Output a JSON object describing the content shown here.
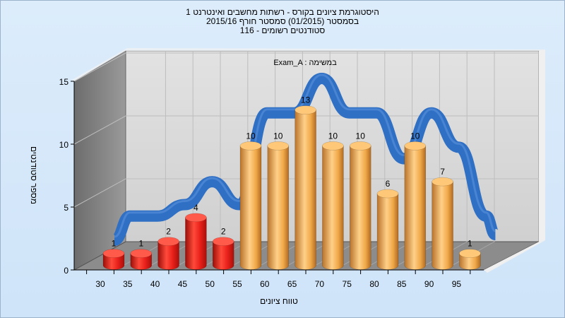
{
  "chart_data": {
    "type": "bar",
    "title_lines": [
      "היסטוגרמת ציונים בקורס - רשתות מחשבים ואינטרנט 1",
      "בסמסטר  (01/2015)  סמסטר חורף 2015/16",
      "סטודנטים רשומים - 116"
    ],
    "annotation": "Exam_A : במשימה",
    "xlabel": "טווח ציונים",
    "ylabel": "מספר סטודנטים",
    "categories": [
      "30",
      "35",
      "40",
      "45",
      "50",
      "55",
      "60",
      "65",
      "70",
      "75",
      "80",
      "85",
      "90",
      "95"
    ],
    "values": [
      1,
      1,
      2,
      4,
      2,
      10,
      10,
      13,
      10,
      10,
      6,
      10,
      7,
      1
    ],
    "data_labels": [
      "1",
      "1",
      "2",
      "4",
      "2",
      "10",
      "10",
      "13",
      "10",
      "10",
      "6",
      "10",
      "7",
      "1"
    ],
    "bar_colors": [
      "#e8201a",
      "#e8201a",
      "#e8201a",
      "#e8201a",
      "#e8201a",
      "#f0a848",
      "#f0a848",
      "#f0a848",
      "#f0a848",
      "#f0a848",
      "#f0a848",
      "#f0a848",
      "#f0a848",
      "#f0a848"
    ],
    "curve_color": "#2f6fc4",
    "yticks": [
      "0",
      "5",
      "10",
      "15"
    ],
    "ylim": [
      0,
      15
    ],
    "grid": true
  }
}
